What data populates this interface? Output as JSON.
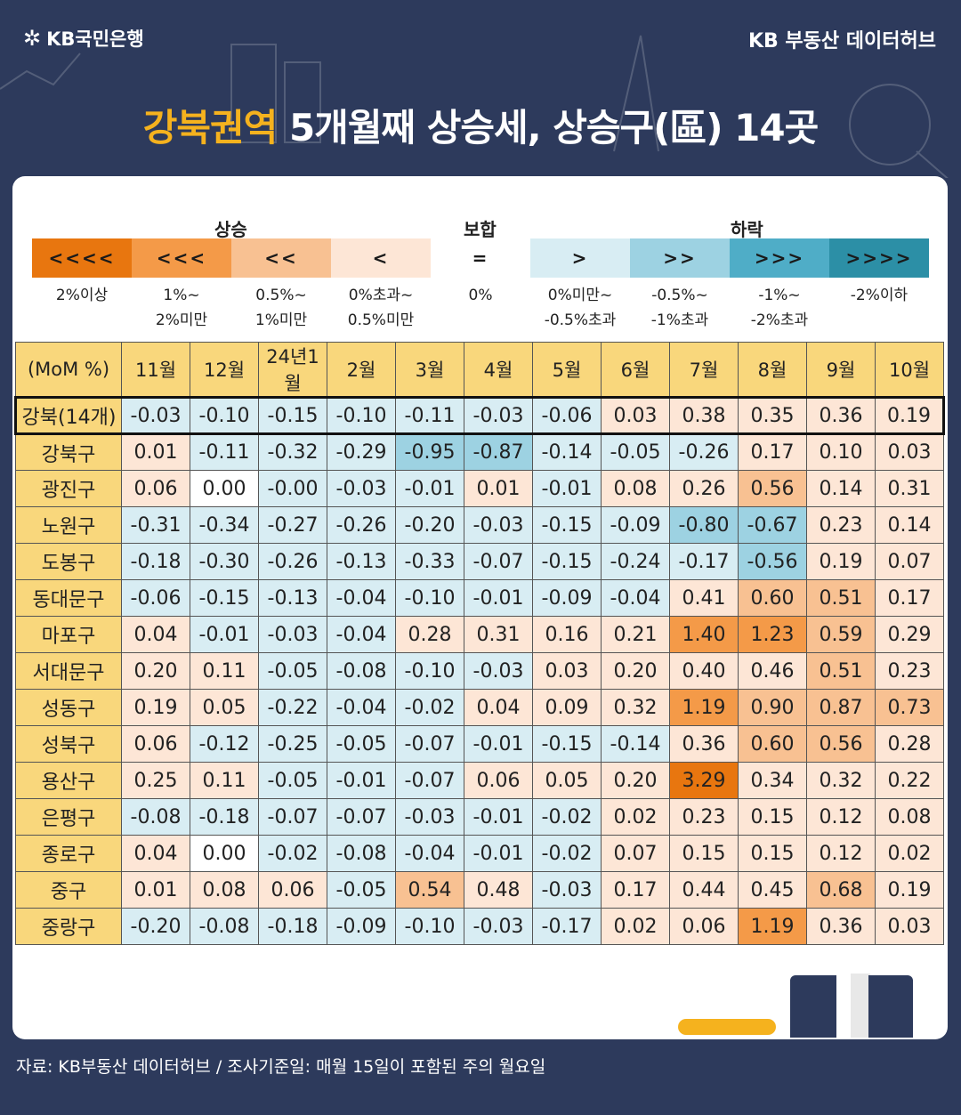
{
  "header": {
    "brand": "KB국민은행",
    "hub": "KB 부동산  데이터허브",
    "title_highlight": "강북권역",
    "title_rest": " 5개월째 상승세, 상승구(區) 14곳"
  },
  "legend": {
    "groups": [
      "상승",
      "보합",
      "하락"
    ],
    "items": [
      {
        "symbol": "<<<<",
        "desc": "2%이상",
        "color": "#e8760f"
      },
      {
        "symbol": "<<<",
        "desc": "1%~\n2%미만",
        "color": "#f49a48"
      },
      {
        "symbol": "<<",
        "desc": "0.5%~\n1%미만",
        "color": "#f8c192"
      },
      {
        "symbol": "<",
        "desc": "0%초과~\n0.5%미만",
        "color": "#fde6d6"
      },
      {
        "symbol": "=",
        "desc": "0%",
        "color": "#ffffff"
      },
      {
        "symbol": ">",
        "desc": "0%미만~\n-0.5%초과",
        "color": "#d8edf3"
      },
      {
        "symbol": ">>",
        "desc": "-0.5%~\n-1%초과",
        "color": "#9dd2e2"
      },
      {
        "symbol": ">>>",
        "desc": "-1%~\n-2%초과",
        "color": "#4fadc7"
      },
      {
        "symbol": ">>>>",
        "desc": "-2%이하",
        "color": "#2c8fa6"
      }
    ]
  },
  "chart_data": {
    "type": "table",
    "corner_label": "(MoM %)",
    "columns": [
      "11월",
      "12월",
      "24년1월",
      "2월",
      "3월",
      "4월",
      "5월",
      "6월",
      "7월",
      "8월",
      "9월",
      "10월"
    ],
    "rows": [
      {
        "name": "강북(14개)",
        "values": [
          -0.03,
          -0.1,
          -0.15,
          -0.1,
          -0.11,
          -0.03,
          -0.06,
          0.03,
          0.38,
          0.35,
          0.36,
          0.19
        ],
        "text": [
          "-0.03",
          "-0.10",
          "-0.15",
          "-0.10",
          "-0.11",
          "-0.03",
          "-0.06",
          "0.03",
          "0.38",
          "0.35",
          "0.36",
          "0.19"
        ]
      },
      {
        "name": "강북구",
        "values": [
          0.01,
          -0.11,
          -0.32,
          -0.29,
          -0.95,
          -0.87,
          -0.14,
          -0.05,
          -0.26,
          0.17,
          0.1,
          0.03
        ],
        "text": [
          "0.01",
          "-0.11",
          "-0.32",
          "-0.29",
          "-0.95",
          "-0.87",
          "-0.14",
          "-0.05",
          "-0.26",
          "0.17",
          "0.10",
          "0.03"
        ]
      },
      {
        "name": "광진구",
        "values": [
          0.06,
          0.0,
          -0.001,
          -0.03,
          -0.01,
          0.01,
          -0.01,
          0.08,
          0.26,
          0.56,
          0.14,
          0.31
        ],
        "text": [
          "0.06",
          "0.00",
          "-0.00",
          "-0.03",
          "-0.01",
          "0.01",
          "-0.01",
          "0.08",
          "0.26",
          "0.56",
          "0.14",
          "0.31"
        ]
      },
      {
        "name": "노원구",
        "values": [
          -0.31,
          -0.34,
          -0.27,
          -0.26,
          -0.2,
          -0.03,
          -0.15,
          -0.09,
          -0.8,
          -0.67,
          0.23,
          0.14
        ],
        "text": [
          "-0.31",
          "-0.34",
          "-0.27",
          "-0.26",
          "-0.20",
          "-0.03",
          "-0.15",
          "-0.09",
          "-0.80",
          "-0.67",
          "0.23",
          "0.14"
        ]
      },
      {
        "name": "도봉구",
        "values": [
          -0.18,
          -0.3,
          -0.26,
          -0.13,
          -0.33,
          -0.07,
          -0.15,
          -0.24,
          -0.17,
          -0.56,
          0.19,
          0.07
        ],
        "text": [
          "-0.18",
          "-0.30",
          "-0.26",
          "-0.13",
          "-0.33",
          "-0.07",
          "-0.15",
          "-0.24",
          "-0.17",
          "-0.56",
          "0.19",
          "0.07"
        ]
      },
      {
        "name": "동대문구",
        "values": [
          -0.06,
          -0.15,
          -0.13,
          -0.04,
          -0.1,
          -0.01,
          -0.09,
          -0.04,
          0.41,
          0.6,
          0.51,
          0.17
        ],
        "text": [
          "-0.06",
          "-0.15",
          "-0.13",
          "-0.04",
          "-0.10",
          "-0.01",
          "-0.09",
          "-0.04",
          "0.41",
          "0.60",
          "0.51",
          "0.17"
        ]
      },
      {
        "name": "마포구",
        "values": [
          0.04,
          -0.01,
          -0.03,
          -0.04,
          0.28,
          0.31,
          0.16,
          0.21,
          1.4,
          1.23,
          0.59,
          0.29
        ],
        "text": [
          "0.04",
          "-0.01",
          "-0.03",
          "-0.04",
          "0.28",
          "0.31",
          "0.16",
          "0.21",
          "1.40",
          "1.23",
          "0.59",
          "0.29"
        ]
      },
      {
        "name": "서대문구",
        "values": [
          0.2,
          0.11,
          -0.05,
          -0.08,
          -0.1,
          -0.03,
          0.03,
          0.2,
          0.4,
          0.46,
          0.51,
          0.23
        ],
        "text": [
          "0.20",
          "0.11",
          "-0.05",
          "-0.08",
          "-0.10",
          "-0.03",
          "0.03",
          "0.20",
          "0.40",
          "0.46",
          "0.51",
          "0.23"
        ]
      },
      {
        "name": "성동구",
        "values": [
          0.19,
          0.05,
          -0.22,
          -0.04,
          -0.02,
          0.04,
          0.09,
          0.32,
          1.19,
          0.9,
          0.87,
          0.73
        ],
        "text": [
          "0.19",
          "0.05",
          "-0.22",
          "-0.04",
          "-0.02",
          "0.04",
          "0.09",
          "0.32",
          "1.19",
          "0.90",
          "0.87",
          "0.73"
        ]
      },
      {
        "name": "성북구",
        "values": [
          0.06,
          -0.12,
          -0.25,
          -0.05,
          -0.07,
          -0.01,
          -0.15,
          -0.14,
          0.36,
          0.6,
          0.56,
          0.28
        ],
        "text": [
          "0.06",
          "-0.12",
          "-0.25",
          "-0.05",
          "-0.07",
          "-0.01",
          "-0.15",
          "-0.14",
          "0.36",
          "0.60",
          "0.56",
          "0.28"
        ]
      },
      {
        "name": "용산구",
        "values": [
          0.25,
          0.11,
          -0.05,
          -0.01,
          -0.07,
          0.06,
          0.05,
          0.2,
          3.29,
          0.34,
          0.32,
          0.22
        ],
        "text": [
          "0.25",
          "0.11",
          "-0.05",
          "-0.01",
          "-0.07",
          "0.06",
          "0.05",
          "0.20",
          "3.29",
          "0.34",
          "0.32",
          "0.22"
        ]
      },
      {
        "name": "은평구",
        "values": [
          -0.08,
          -0.18,
          -0.07,
          -0.07,
          -0.03,
          -0.01,
          -0.02,
          0.02,
          0.23,
          0.15,
          0.12,
          0.08
        ],
        "text": [
          "-0.08",
          "-0.18",
          "-0.07",
          "-0.07",
          "-0.03",
          "-0.01",
          "-0.02",
          "0.02",
          "0.23",
          "0.15",
          "0.12",
          "0.08"
        ]
      },
      {
        "name": "종로구",
        "values": [
          0.04,
          0.0,
          -0.02,
          -0.08,
          -0.04,
          -0.01,
          -0.02,
          0.07,
          0.15,
          0.15,
          0.12,
          0.02
        ],
        "text": [
          "0.04",
          "0.00",
          "-0.02",
          "-0.08",
          "-0.04",
          "-0.01",
          "-0.02",
          "0.07",
          "0.15",
          "0.15",
          "0.12",
          "0.02"
        ]
      },
      {
        "name": "중구",
        "values": [
          0.01,
          0.08,
          0.06,
          -0.05,
          0.54,
          0.48,
          -0.03,
          0.17,
          0.44,
          0.45,
          0.68,
          0.19
        ],
        "text": [
          "0.01",
          "0.08",
          "0.06",
          "-0.05",
          "0.54",
          "0.48",
          "-0.03",
          "0.17",
          "0.44",
          "0.45",
          "0.68",
          "0.19"
        ]
      },
      {
        "name": "중랑구",
        "values": [
          -0.2,
          -0.08,
          -0.18,
          -0.09,
          -0.1,
          -0.03,
          -0.17,
          0.02,
          0.06,
          1.19,
          0.36,
          0.03
        ],
        "text": [
          "-0.20",
          "-0.08",
          "-0.18",
          "-0.09",
          "-0.10",
          "-0.03",
          "-0.17",
          "0.02",
          "0.06",
          "1.19",
          "0.36",
          "0.03"
        ]
      }
    ]
  },
  "source": "자료: KB부동산 데이터허브 / 조사기준일: 매월 15일이 포함된 주의 월요일"
}
